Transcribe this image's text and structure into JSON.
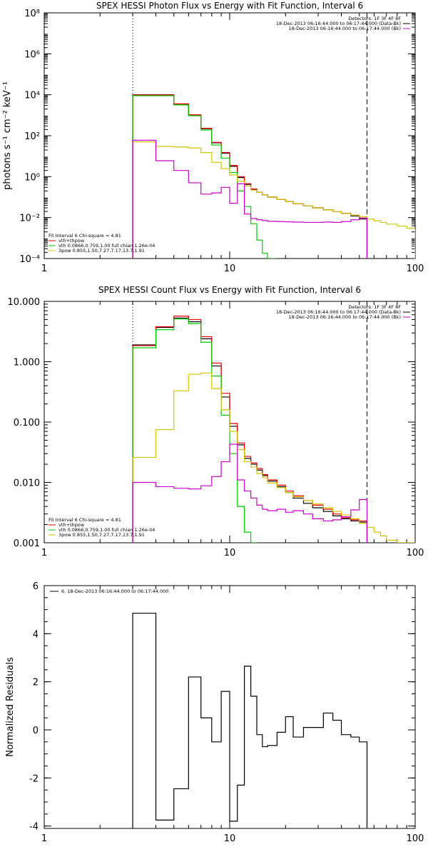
{
  "palette": {
    "observed": "#000000",
    "total_fit": "#ee0000",
    "thermal": "#00cc00",
    "power_law": "#d4c400",
    "background": "#cc00cc"
  },
  "chart_data": [
    {
      "type": "line",
      "title": "SPEX HESSI Photon Flux vs Energy with Fit Function, Interval 6",
      "xlabel": "",
      "ylabel": "photons s⁻¹ cm⁻² keV⁻¹",
      "xscale": "log",
      "yscale": "log",
      "xlim": [
        1,
        100
      ],
      "ylim": [
        0.0001,
        100000000
      ],
      "x_ticks": [
        "1",
        "10",
        "100"
      ],
      "y_ticks": [
        "10⁻⁴",
        "10⁻²",
        "10⁰",
        "10²",
        "10⁴",
        "10⁶",
        "10⁸"
      ],
      "vlines": [
        {
          "x": 3,
          "style": "dotted"
        },
        {
          "x": 55,
          "style": "dashed"
        }
      ],
      "legend_header": [
        {
          "text": "Detectors: 1F 3F 4F 8F",
          "color_key": ""
        },
        {
          "text": "18-Dec-2013 06:16:44.000 to 06:17:44.000 (Data-Bk)",
          "color_key": "observed"
        },
        {
          "text": "18-Dec-2013 06:16:44.000 to 06:17:44.000 (Bk)",
          "color_key": "background"
        }
      ],
      "legend_fit": [
        {
          "text": "Fit Interval  6    Chi-square = 4.81",
          "color_key": ""
        },
        {
          "text": "vth+thpow",
          "color_key": "total_fit"
        },
        {
          "text": "vth 0.0866,0.759,1.00  full chian 1.26e-04",
          "color_key": "thermal"
        },
        {
          "text": "3pow 0.855,1.50,7.27,7.17,13.7,1.91",
          "color_key": "power_law"
        }
      ],
      "edges": [
        3,
        4,
        5,
        6,
        7,
        8,
        9,
        10,
        11,
        12,
        13,
        14,
        15,
        16,
        18,
        20,
        22,
        25,
        28,
        32,
        36,
        40,
        45,
        50,
        55,
        60,
        65,
        70,
        80,
        90,
        100
      ],
      "series": [
        {
          "color_key": "observed",
          "values": [
            10000,
            10000,
            3500,
            1000,
            220,
            45,
            14,
            3.2,
            0.9,
            0.42,
            0.24,
            0.17,
            0.13,
            0.1,
            0.078,
            0.06,
            0.048,
            0.038,
            0.03,
            0.024,
            0.02,
            0.016,
            0.012,
            0.0085
          ]
        },
        {
          "color_key": "total_fit",
          "values": [
            9800,
            9800,
            3600,
            1050,
            230,
            47,
            15,
            3.5,
            1.0,
            0.45,
            0.25,
            0.17,
            0.13,
            0.1,
            0.078,
            0.06,
            0.048,
            0.038,
            0.03,
            0.024,
            0.02,
            0.016,
            0.013,
            0.0095
          ]
        },
        {
          "color_key": "thermal",
          "values": [
            9000,
            9000,
            3200,
            950,
            190,
            35,
            8,
            1.6,
            0.2,
            0.035,
            0.005,
            0.0008,
            0.00018,
            9e-05
          ]
        },
        {
          "color_key": "power_law",
          "values": [
            50,
            30,
            28,
            25,
            15,
            5,
            2.5,
            1.2,
            0.6,
            0.35,
            0.22,
            0.17,
            0.13,
            0.1,
            0.078,
            0.06,
            0.048,
            0.038,
            0.03,
            0.024,
            0.02,
            0.016,
            0.013,
            0.011,
            0.0085,
            0.007,
            0.0058,
            0.0048,
            0.0038,
            0.003
          ]
        },
        {
          "color_key": "background",
          "values": [
            60,
            6,
            2,
            0.5,
            0.14,
            0.16,
            0.3,
            0.05,
            0.45,
            0.015,
            0.009,
            0.0078,
            0.0072,
            0.0066,
            0.0064,
            0.0062,
            0.006,
            0.0058,
            0.0058,
            0.006,
            0.0058,
            0.0064,
            0.0078,
            0.0095
          ]
        }
      ]
    },
    {
      "type": "line",
      "title": "SPEX HESSI Count Flux vs Energy with Fit Function, Interval 6",
      "xlabel": "",
      "ylabel": "",
      "xscale": "log",
      "yscale": "log",
      "xlim": [
        1,
        100
      ],
      "ylim": [
        0.001,
        10
      ],
      "x_ticks": [
        "1",
        "10",
        "100"
      ],
      "y_ticks": [
        "0.001",
        "0.010",
        "0.100",
        "1.000",
        "10.000"
      ],
      "vlines": [
        {
          "x": 3,
          "style": "dotted"
        },
        {
          "x": 55,
          "style": "dashed"
        }
      ],
      "legend_header": [
        {
          "text": "Detectors: 1F 3F 4F 8F",
          "color_key": ""
        },
        {
          "text": "18-Dec-2013 06:16:44.000 to 06:17:44.000 (Data-Bk)",
          "color_key": "observed"
        },
        {
          "text": "18-Dec-2013 06:16:44.000 to 06:17:44.000 (Bk)",
          "color_key": "background"
        }
      ],
      "legend_fit": [
        {
          "text": "Fit Interval  6    Chi-square = 4.81",
          "color_key": ""
        },
        {
          "text": "vth+thpow",
          "color_key": "total_fit"
        },
        {
          "text": "vth 0.0866,0.759,1.00  full chian 1.26e-04",
          "color_key": "thermal"
        },
        {
          "text": "3pow 0.855,1.50,7.27,7.17,13.7,1.91",
          "color_key": "power_law"
        }
      ],
      "edges": [
        3,
        4,
        5,
        6,
        7,
        8,
        9,
        10,
        11,
        12,
        13,
        14,
        15,
        16,
        18,
        20,
        22,
        25,
        28,
        32,
        36,
        40,
        45,
        50,
        55,
        60,
        65,
        70,
        80,
        90,
        100
      ],
      "series": [
        {
          "color_key": "observed",
          "values": [
            1.9,
            3.7,
            5.3,
            4.6,
            2.4,
            0.85,
            0.26,
            0.085,
            0.042,
            0.025,
            0.02,
            0.016,
            0.013,
            0.0105,
            0.0085,
            0.0068,
            0.0055,
            0.0045,
            0.0038,
            0.0033,
            0.0028,
            0.0025,
            0.0023,
            0.0022
          ]
        },
        {
          "color_key": "total_fit",
          "values": [
            1.85,
            3.8,
            5.7,
            5.0,
            2.6,
            0.95,
            0.3,
            0.095,
            0.045,
            0.027,
            0.021,
            0.017,
            0.0135,
            0.011,
            0.009,
            0.0072,
            0.006,
            0.005,
            0.0042,
            0.0036,
            0.003,
            0.0026,
            0.0024,
            0.0023
          ]
        },
        {
          "color_key": "thermal",
          "values": [
            1.7,
            3.4,
            5.1,
            4.3,
            2.1,
            0.58,
            0.13,
            0.03,
            0.004,
            0.0015,
            0.0009
          ]
        },
        {
          "color_key": "power_law",
          "values": [
            0.026,
            0.075,
            0.33,
            0.62,
            0.65,
            0.36,
            0.16,
            0.07,
            0.035,
            0.022,
            0.018,
            0.014,
            0.012,
            0.0098,
            0.0082,
            0.0068,
            0.0058,
            0.005,
            0.0044,
            0.0038,
            0.0033,
            0.0029,
            0.0025,
            0.0021,
            0.0018,
            0.0015,
            0.0013,
            0.0011,
            0.001,
            0.00085
          ]
        },
        {
          "color_key": "background",
          "values": [
            0.01,
            0.0085,
            0.008,
            0.0078,
            0.0088,
            0.0125,
            0.022,
            0.043,
            0.011,
            0.0072,
            0.0055,
            0.0042,
            0.0036,
            0.0034,
            0.0036,
            0.0032,
            0.0034,
            0.003,
            0.0025,
            0.0023,
            0.0024,
            0.0027,
            0.0035,
            0.0052
          ]
        }
      ]
    },
    {
      "type": "line",
      "title": "",
      "xlabel": "",
      "ylabel": "Normalized Residuals",
      "xscale": "log",
      "yscale": "linear",
      "xlim": [
        1,
        100
      ],
      "ylim": [
        -4.1,
        6
      ],
      "x_ticks": [
        "1",
        "10",
        "100"
      ],
      "y_ticks": [
        "-4",
        "-2",
        "0",
        "2",
        "4",
        "6"
      ],
      "legend_header": [
        {
          "text": "6. 18-Dec-2013 06:16:44.000 to 06:17:44.000",
          "color_key": "observed"
        }
      ],
      "edges": [
        3,
        4,
        5,
        6,
        7,
        8,
        9,
        10,
        11,
        12,
        13,
        14,
        15,
        16,
        18,
        20,
        22,
        25,
        28,
        32,
        36,
        40,
        45,
        50,
        55
      ],
      "series": [
        {
          "color_key": "observed",
          "values": [
            4.85,
            -3.75,
            -2.45,
            2.2,
            0.5,
            -0.5,
            1.6,
            -3.8,
            -2.3,
            2.65,
            1.4,
            -0.2,
            -0.7,
            -0.65,
            -0.1,
            0.55,
            -0.3,
            0.1,
            0.1,
            0.7,
            0.4,
            -0.2,
            -0.3,
            -0.5
          ]
        }
      ]
    }
  ]
}
